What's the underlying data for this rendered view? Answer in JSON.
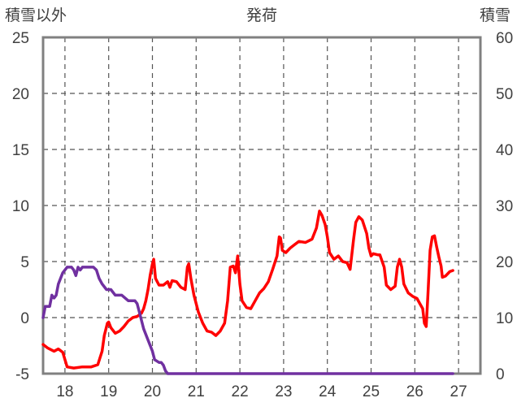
{
  "chart_data": {
    "type": "line",
    "title": "発荷",
    "left_axis_label": "積雪以外",
    "right_axis_label": "積雪",
    "x_tick_labels": [
      "18",
      "19",
      "20",
      "21",
      "22",
      "23",
      "24",
      "25",
      "26",
      "27"
    ],
    "x_range": [
      17.5,
      27.5
    ],
    "y_left_range": [
      -5,
      25
    ],
    "y_left_ticks": [
      -5,
      0,
      5,
      10,
      15,
      20,
      25
    ],
    "y_right_range": [
      0,
      60
    ],
    "y_right_ticks": [
      0,
      10,
      20,
      30,
      40,
      50,
      60
    ],
    "grid": "vertical dashed lines at each day, horizontal dashed lines at each left tick",
    "series": [
      {
        "axis": "left",
        "color": "#ff0000",
        "points": [
          [
            17.5,
            -2.4
          ],
          [
            17.6,
            -2.7
          ],
          [
            17.75,
            -3.0
          ],
          [
            17.85,
            -2.8
          ],
          [
            17.95,
            -3.1
          ],
          [
            18.05,
            -4.4
          ],
          [
            18.2,
            -4.5
          ],
          [
            18.4,
            -4.4
          ],
          [
            18.6,
            -4.4
          ],
          [
            18.75,
            -4.2
          ],
          [
            18.85,
            -3.0
          ],
          [
            18.9,
            -1.6
          ],
          [
            18.97,
            -0.5
          ],
          [
            19.0,
            -0.4
          ],
          [
            19.05,
            -0.9
          ],
          [
            19.15,
            -1.4
          ],
          [
            19.25,
            -1.2
          ],
          [
            19.35,
            -0.8
          ],
          [
            19.45,
            -0.3
          ],
          [
            19.55,
            0.0
          ],
          [
            19.65,
            0.1
          ],
          [
            19.75,
            0.4
          ],
          [
            19.8,
            0.8
          ],
          [
            19.85,
            1.5
          ],
          [
            19.9,
            2.5
          ],
          [
            19.95,
            3.8
          ],
          [
            20.0,
            4.8
          ],
          [
            20.03,
            5.2
          ],
          [
            20.07,
            3.5
          ],
          [
            20.15,
            2.9
          ],
          [
            20.25,
            2.9
          ],
          [
            20.35,
            3.2
          ],
          [
            20.4,
            2.7
          ],
          [
            20.45,
            3.3
          ],
          [
            20.55,
            3.2
          ],
          [
            20.65,
            2.7
          ],
          [
            20.75,
            2.5
          ],
          [
            20.8,
            4.5
          ],
          [
            20.83,
            4.8
          ],
          [
            20.88,
            3.5
          ],
          [
            20.95,
            2.0
          ],
          [
            21.05,
            0.5
          ],
          [
            21.15,
            -0.5
          ],
          [
            21.25,
            -1.2
          ],
          [
            21.35,
            -1.3
          ],
          [
            21.45,
            -1.6
          ],
          [
            21.55,
            -1.2
          ],
          [
            21.65,
            -0.5
          ],
          [
            21.72,
            1.5
          ],
          [
            21.78,
            4.5
          ],
          [
            21.85,
            4.6
          ],
          [
            21.9,
            4.0
          ],
          [
            21.95,
            5.5
          ],
          [
            22.0,
            3.0
          ],
          [
            22.05,
            1.5
          ],
          [
            22.15,
            0.9
          ],
          [
            22.25,
            0.8
          ],
          [
            22.35,
            1.5
          ],
          [
            22.45,
            2.2
          ],
          [
            22.55,
            2.6
          ],
          [
            22.65,
            3.2
          ],
          [
            22.75,
            4.3
          ],
          [
            22.85,
            5.5
          ],
          [
            22.9,
            7.2
          ],
          [
            22.93,
            7.1
          ],
          [
            22.97,
            6.0
          ],
          [
            23.05,
            5.8
          ],
          [
            23.15,
            6.2
          ],
          [
            23.25,
            6.5
          ],
          [
            23.35,
            6.8
          ],
          [
            23.5,
            6.7
          ],
          [
            23.65,
            7.0
          ],
          [
            23.75,
            8.0
          ],
          [
            23.82,
            9.5
          ],
          [
            23.88,
            9.1
          ],
          [
            23.95,
            8.3
          ],
          [
            24.0,
            7.2
          ],
          [
            24.05,
            5.8
          ],
          [
            24.15,
            5.2
          ],
          [
            24.25,
            5.5
          ],
          [
            24.35,
            5.0
          ],
          [
            24.45,
            4.9
          ],
          [
            24.52,
            4.3
          ],
          [
            24.6,
            7.0
          ],
          [
            24.65,
            8.5
          ],
          [
            24.72,
            9.0
          ],
          [
            24.8,
            8.7
          ],
          [
            24.9,
            7.5
          ],
          [
            24.95,
            6.2
          ],
          [
            25.0,
            5.5
          ],
          [
            25.05,
            5.7
          ],
          [
            25.15,
            5.6
          ],
          [
            25.2,
            5.6
          ],
          [
            25.3,
            4.5
          ],
          [
            25.35,
            2.9
          ],
          [
            25.45,
            2.5
          ],
          [
            25.55,
            2.8
          ],
          [
            25.6,
            4.5
          ],
          [
            25.65,
            5.2
          ],
          [
            25.7,
            4.5
          ],
          [
            25.75,
            3.0
          ],
          [
            25.8,
            2.6
          ],
          [
            25.85,
            2.2
          ],
          [
            25.95,
            1.9
          ],
          [
            26.05,
            1.7
          ],
          [
            26.12,
            1.2
          ],
          [
            26.18,
            0.8
          ],
          [
            26.22,
            -0.5
          ],
          [
            26.26,
            -0.8
          ],
          [
            26.3,
            2.0
          ],
          [
            26.35,
            6.0
          ],
          [
            26.4,
            7.2
          ],
          [
            26.45,
            7.3
          ],
          [
            26.5,
            6.3
          ],
          [
            26.55,
            5.4
          ],
          [
            26.6,
            4.6
          ],
          [
            26.63,
            3.6
          ],
          [
            26.7,
            3.7
          ],
          [
            26.8,
            4.1
          ],
          [
            26.87,
            4.2
          ]
        ]
      },
      {
        "axis": "right",
        "color": "#7030a0",
        "points": [
          [
            17.5,
            10.0
          ],
          [
            17.55,
            12.0
          ],
          [
            17.65,
            12.0
          ],
          [
            17.7,
            14.0
          ],
          [
            17.75,
            13.5
          ],
          [
            17.8,
            14.0
          ],
          [
            17.85,
            16.0
          ],
          [
            17.95,
            18.0
          ],
          [
            18.05,
            19.0
          ],
          [
            18.15,
            19.0
          ],
          [
            18.2,
            18.5
          ],
          [
            18.25,
            17.5
          ],
          [
            18.3,
            19.0
          ],
          [
            18.35,
            18.5
          ],
          [
            18.4,
            19.0
          ],
          [
            18.5,
            19.0
          ],
          [
            18.65,
            19.0
          ],
          [
            18.72,
            18.5
          ],
          [
            18.78,
            17.0
          ],
          [
            18.85,
            16.0
          ],
          [
            18.95,
            15.0
          ],
          [
            19.05,
            15.0
          ],
          [
            19.15,
            14.0
          ],
          [
            19.3,
            14.0
          ],
          [
            19.45,
            13.0
          ],
          [
            19.6,
            13.0
          ],
          [
            19.65,
            12.5
          ],
          [
            19.7,
            11.0
          ],
          [
            19.8,
            8.0
          ],
          [
            19.9,
            6.0
          ],
          [
            19.95,
            5.0
          ],
          [
            20.0,
            4.0
          ],
          [
            20.05,
            2.5
          ],
          [
            20.15,
            2.0
          ],
          [
            20.2,
            2.0
          ],
          [
            20.25,
            1.5
          ],
          [
            20.3,
            0.5
          ],
          [
            20.35,
            0.0
          ],
          [
            26.87,
            0.0
          ]
        ]
      }
    ]
  }
}
